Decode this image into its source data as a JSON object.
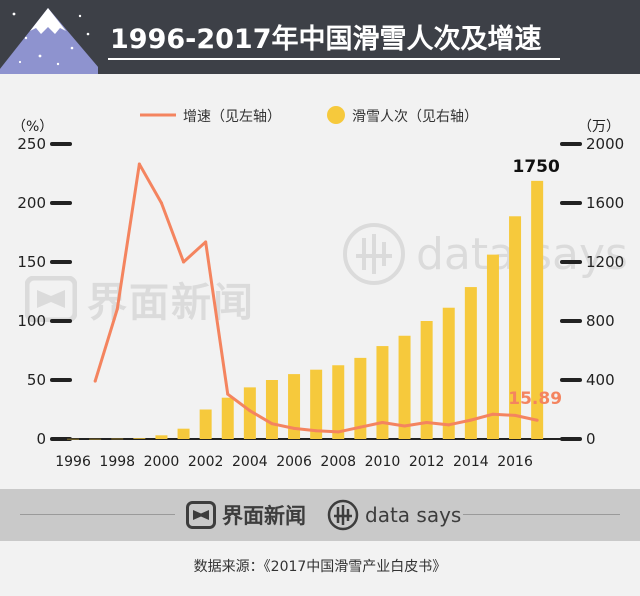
{
  "header": {
    "title": "1996-2017年中国滑雪人次及增速"
  },
  "colors": {
    "header_bg": "#3d4047",
    "line": "#f4845f",
    "bar": "#f6c93c",
    "label_highlight": "#f4845f"
  },
  "chart_data": {
    "type": "bar",
    "legend": {
      "line_label": "增速（见左轴）",
      "bar_label": "滑雪人次（见右轴）",
      "placement": "top-center"
    },
    "left_axis": {
      "unit": "（%）",
      "ylim": [
        0,
        250
      ],
      "ticks": [
        0,
        50,
        100,
        150,
        200,
        250
      ]
    },
    "right_axis": {
      "unit": "（万）",
      "ylim": [
        0,
        2000
      ],
      "ticks": [
        0,
        400,
        800,
        1200,
        1600,
        2000
      ]
    },
    "x_tick_labels": [
      "1996",
      "1998",
      "2000",
      "2002",
      "2004",
      "2006",
      "2008",
      "2010",
      "2012",
      "2014",
      "2016"
    ],
    "categories": [
      "1996",
      "1997",
      "1998",
      "1999",
      "2000",
      "2001",
      "2002",
      "2003",
      "2004",
      "2005",
      "2006",
      "2007",
      "2008",
      "2009",
      "2010",
      "2011",
      "2012",
      "2013",
      "2014",
      "2015",
      "2016",
      "2017"
    ],
    "series": [
      {
        "name": "滑雪人次（见右轴）",
        "axis": "right",
        "type": "bar",
        "values": [
          1,
          1,
          2,
          5,
          25,
          70,
          200,
          280,
          350,
          400,
          440,
          470,
          500,
          550,
          630,
          700,
          800,
          890,
          1030,
          1250,
          1510,
          1750
        ]
      },
      {
        "name": "增速（见左轴）",
        "axis": "left",
        "type": "line",
        "values": [
          null,
          49,
          110,
          233,
          200,
          150,
          167,
          38,
          24,
          13,
          9,
          7,
          6,
          10,
          14,
          11,
          14,
          12,
          16,
          21,
          20,
          15.89
        ]
      }
    ],
    "annotations": [
      {
        "text": "1750",
        "category": "2017",
        "series": "bar"
      },
      {
        "text": "15.89",
        "category": "2017",
        "series": "line"
      }
    ]
  },
  "watermarks": {
    "jiemian": "界面新闻",
    "datasays": "data says"
  },
  "footer": {
    "jiemian_label": "界面新闻",
    "datasays_label": "data says",
    "source": "数据来源：《2017中国滑雪产业白皮书》"
  }
}
